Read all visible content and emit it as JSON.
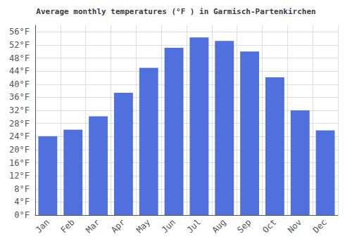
{
  "chart_data": {
    "type": "bar",
    "title": "Average monthly temperatures (°F ) in Garmisch-Partenkirchen",
    "categories": [
      "Jan",
      "Feb",
      "Mar",
      "Apr",
      "May",
      "Jun",
      "Jul",
      "Aug",
      "Sep",
      "Oct",
      "Nov",
      "Dec"
    ],
    "values": [
      24.1,
      26.1,
      30.2,
      37.4,
      45.0,
      51.1,
      54.3,
      53.2,
      50.0,
      42.1,
      32.0,
      25.9
    ],
    "ylim": [
      0,
      58
    ],
    "yticks": [
      {
        "value": 0,
        "label": "0°F"
      },
      {
        "value": 4,
        "label": "4°F"
      },
      {
        "value": 8,
        "label": "8°F"
      },
      {
        "value": 12,
        "label": "12°F"
      },
      {
        "value": 16,
        "label": "16°F"
      },
      {
        "value": 20,
        "label": "20°F"
      },
      {
        "value": 24,
        "label": "24°F"
      },
      {
        "value": 28,
        "label": "28°F"
      },
      {
        "value": 32,
        "label": "32°F"
      },
      {
        "value": 36,
        "label": "36°F"
      },
      {
        "value": 40,
        "label": "40°F"
      },
      {
        "value": 44,
        "label": "44°F"
      },
      {
        "value": 48,
        "label": "48°F"
      },
      {
        "value": 52,
        "label": "52°F"
      },
      {
        "value": 56,
        "label": "56°F"
      }
    ],
    "grid": true
  }
}
